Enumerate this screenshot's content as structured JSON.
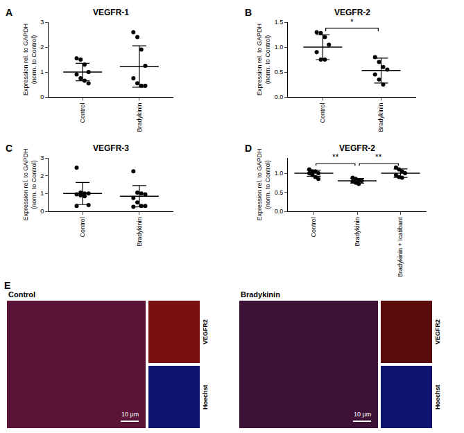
{
  "chart_data": [
    {
      "panel": "A",
      "type": "scatter",
      "title": "VEGFR-1",
      "ylabel": [
        "Expression rel. to GAPDH",
        "(norm. to Control)"
      ],
      "categories": [
        "Control",
        "Bradykinin"
      ],
      "values": [
        [
          1.55,
          1.5,
          1.3,
          1.0,
          0.9,
          0.75,
          0.65,
          0.55
        ],
        [
          2.6,
          2.4,
          1.9,
          1.25,
          0.75,
          0.55,
          0.45,
          0.45
        ]
      ],
      "mean": [
        1.0,
        1.22
      ],
      "sd": [
        0.35,
        0.83
      ],
      "color": "#000000",
      "marker": "circle",
      "grid": false,
      "ylim": [
        0,
        3
      ],
      "yticks": [
        0,
        1,
        2,
        3
      ],
      "comparisons": []
    },
    {
      "panel": "B",
      "type": "scatter",
      "title": "VEGFR-2",
      "ylabel": [
        "Expression rel. to GAPDH",
        "(norm. to Control)"
      ],
      "categories": [
        "Control",
        "Bradykinin"
      ],
      "values": [
        [
          1.3,
          1.28,
          1.2,
          1.05,
          0.9,
          0.75,
          0.75
        ],
        [
          0.8,
          0.7,
          0.6,
          0.55,
          0.45,
          0.35,
          0.25
        ]
      ],
      "mean": [
        1.0,
        0.53
      ],
      "sd": [
        0.25,
        0.25
      ],
      "color": "#000000",
      "marker": "circle",
      "grid": false,
      "ylim": [
        0,
        1.5
      ],
      "yticks": [
        {
          "value": 0,
          "label": "0.0"
        },
        {
          "value": 0.5,
          "label": "0.5"
        },
        {
          "value": 1,
          "label": "1.0"
        },
        {
          "value": 1.5,
          "label": "1.5"
        }
      ],
      "comparisons": [
        {
          "from": "Control",
          "to": "Bradykinin",
          "label": "*",
          "y": 1.38
        }
      ]
    },
    {
      "panel": "C",
      "type": "scatter",
      "title": "VEGFR-3",
      "ylabel": [
        "Expression rel. to GAPDH",
        "(norm. to Control)"
      ],
      "categories": [
        "Control",
        "Bradykinin"
      ],
      "values": [
        [
          2.45,
          1.05,
          1.0,
          1.0,
          0.95,
          0.9,
          0.85,
          0.35,
          0.3
        ],
        [
          2.25,
          1.05,
          1.0,
          0.95,
          0.75,
          0.5,
          0.3,
          0.3,
          0.25
        ]
      ],
      "mean": [
        1.0,
        0.85
      ],
      "sd": [
        0.62,
        0.6
      ],
      "color": "#000000",
      "marker": "circle",
      "grid": false,
      "ylim": [
        0,
        3
      ],
      "yticks": [
        0,
        1,
        2,
        3
      ],
      "comparisons": []
    },
    {
      "panel": "D",
      "type": "scatter",
      "title": "VEGFR-2",
      "ylabel": [
        "Expression rel. to GAPDH",
        "(norm. to Control)"
      ],
      "categories": [
        "Control",
        "Bradykinin",
        "Bradykinin + Icatibant"
      ],
      "values": [
        [
          1.1,
          1.05,
          1.05,
          1.0,
          1.0,
          0.95,
          0.9,
          0.85
        ],
        [
          0.88,
          0.85,
          0.82,
          0.8,
          0.78,
          0.75,
          0.72
        ],
        [
          1.15,
          1.1,
          1.05,
          1.0,
          0.95,
          0.9,
          0.88
        ]
      ],
      "mean": [
        1.0,
        0.8,
        1.0
      ],
      "sd": [
        0.08,
        0.06,
        0.11
      ],
      "color": "#000000",
      "marker": "circle",
      "grid": false,
      "ylim": [
        0,
        1.4
      ],
      "yticks": [
        {
          "value": 0,
          "label": "0.0"
        },
        {
          "value": 0.5,
          "label": "0.5"
        },
        {
          "value": 1,
          "label": "1.0"
        }
      ],
      "comparisons": [
        {
          "from": "Control",
          "to": "Bradykinin",
          "label": "**",
          "y": 1.25
        },
        {
          "from": "Bradykinin",
          "to": "Bradykinin + Icatibant",
          "label": "**",
          "y": 1.25
        }
      ]
    }
  ],
  "image_panel": {
    "panel": "E",
    "images": [
      {
        "title": "Control",
        "channels": [
          "VEGFR2",
          "Hoechst"
        ],
        "scale_bar": "10 µm"
      },
      {
        "title": "Bradykinin",
        "channels": [
          "VEGFR2",
          "Hoechst"
        ],
        "scale_bar": "10 µm"
      }
    ]
  }
}
